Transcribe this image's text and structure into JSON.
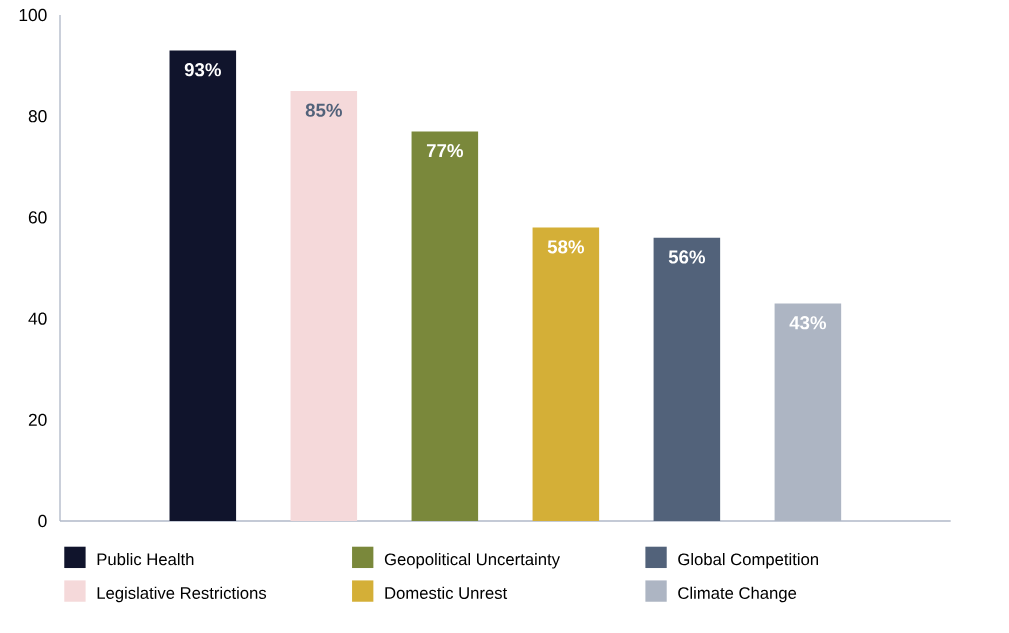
{
  "chart_data": {
    "type": "bar",
    "categories": [
      null,
      null,
      null,
      null,
      null,
      null
    ],
    "series": [
      {
        "name": "Public Health",
        "color": "#10142c",
        "values": [
          93,
          null,
          null,
          null,
          null,
          null
        ],
        "value_labels": [
          "93%",
          null,
          null,
          null,
          null,
          null
        ]
      },
      {
        "name": "Legislative Restrictions",
        "color": "#f5d9da",
        "values": [
          null,
          85,
          null,
          null,
          null,
          null
        ],
        "value_labels": [
          null,
          "85%",
          null,
          null,
          null,
          null
        ]
      },
      {
        "name": "Geopolitical Uncertainty",
        "color": "#7a883b",
        "values": [
          null,
          null,
          77,
          null,
          null,
          null
        ],
        "value_labels": [
          null,
          null,
          "77%",
          null,
          null,
          null
        ]
      },
      {
        "name": "Domestic Unrest",
        "color": "#d4af37",
        "values": [
          null,
          null,
          null,
          58,
          null,
          null
        ],
        "value_labels": [
          null,
          null,
          null,
          "58%",
          null,
          null
        ]
      },
      {
        "name": "Global Competition",
        "color": "#52627a",
        "values": [
          null,
          null,
          null,
          null,
          56,
          null
        ],
        "value_labels": [
          null,
          null,
          null,
          null,
          "56%",
          null
        ]
      },
      {
        "name": "Climate Change",
        "color": "#adb5c3",
        "values": [
          null,
          null,
          null,
          null,
          null,
          43
        ],
        "value_labels": [
          null,
          null,
          null,
          null,
          null,
          "43%"
        ]
      }
    ],
    "ylim": [
      0,
      100
    ],
    "yticks": [
      0,
      20,
      40,
      60,
      80,
      100
    ],
    "grid": false,
    "legend": "bottom"
  }
}
